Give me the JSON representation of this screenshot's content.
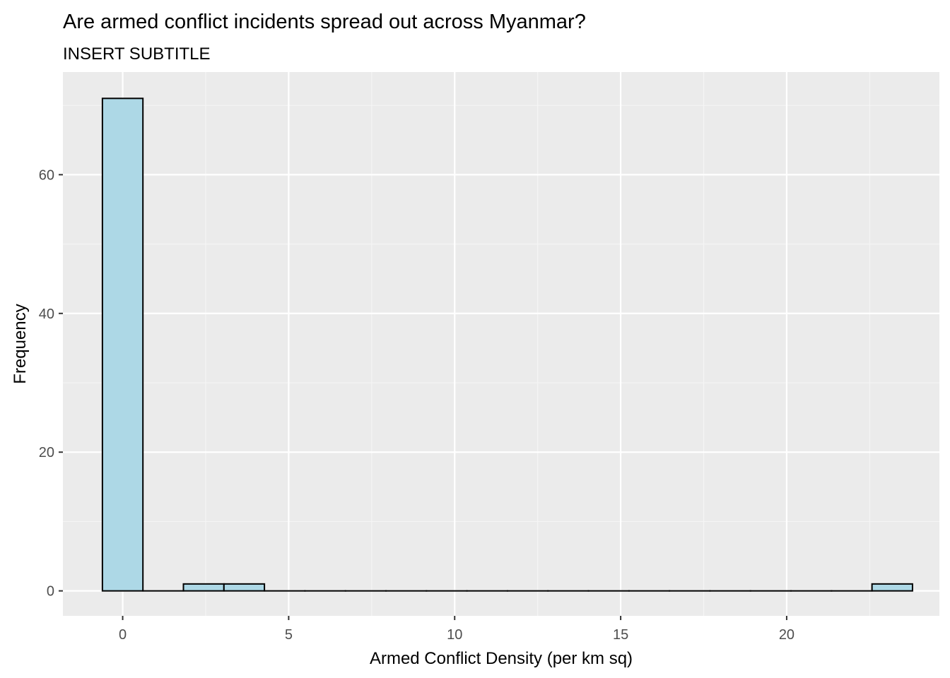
{
  "chart_data": {
    "type": "bar",
    "subtype": "histogram",
    "title": "Are armed conflict incidents spread out across Myanmar?",
    "subtitle": "INSERT SUBTITLE",
    "xlabel": "Armed Conflict Density (per km sq)",
    "ylabel": "Frequency",
    "xlim": [
      -1.8,
      24.6
    ],
    "ylim": [
      -3.6,
      74.8
    ],
    "x_ticks": [
      0,
      5,
      10,
      15,
      20
    ],
    "y_ticks": [
      0,
      20,
      40,
      60
    ],
    "bin_width": 1.22,
    "bins": [
      {
        "start": -0.61,
        "end": 0.61,
        "count": 71
      },
      {
        "start": 0.61,
        "end": 1.83,
        "count": 0
      },
      {
        "start": 1.83,
        "end": 3.05,
        "count": 1
      },
      {
        "start": 3.05,
        "end": 4.27,
        "count": 1
      },
      {
        "start": 4.27,
        "end": 5.49,
        "count": 0
      },
      {
        "start": 5.49,
        "end": 6.71,
        "count": 0
      },
      {
        "start": 6.71,
        "end": 7.93,
        "count": 0
      },
      {
        "start": 7.93,
        "end": 9.15,
        "count": 0
      },
      {
        "start": 9.15,
        "end": 10.37,
        "count": 0
      },
      {
        "start": 10.37,
        "end": 11.59,
        "count": 0
      },
      {
        "start": 11.59,
        "end": 12.81,
        "count": 0
      },
      {
        "start": 12.81,
        "end": 14.03,
        "count": 0
      },
      {
        "start": 14.03,
        "end": 15.25,
        "count": 0
      },
      {
        "start": 15.25,
        "end": 16.47,
        "count": 0
      },
      {
        "start": 16.47,
        "end": 17.69,
        "count": 0
      },
      {
        "start": 17.69,
        "end": 18.91,
        "count": 0
      },
      {
        "start": 18.91,
        "end": 20.13,
        "count": 0
      },
      {
        "start": 20.13,
        "end": 21.35,
        "count": 0
      },
      {
        "start": 21.35,
        "end": 22.57,
        "count": 0
      },
      {
        "start": 22.57,
        "end": 23.79,
        "count": 1
      }
    ],
    "grid": true,
    "colors": {
      "bar_fill": "#add8e6",
      "bar_stroke": "#000000",
      "panel_background": "#ebebeb",
      "grid_major": "#ffffff",
      "grid_minor": "#f5f5f5"
    }
  }
}
